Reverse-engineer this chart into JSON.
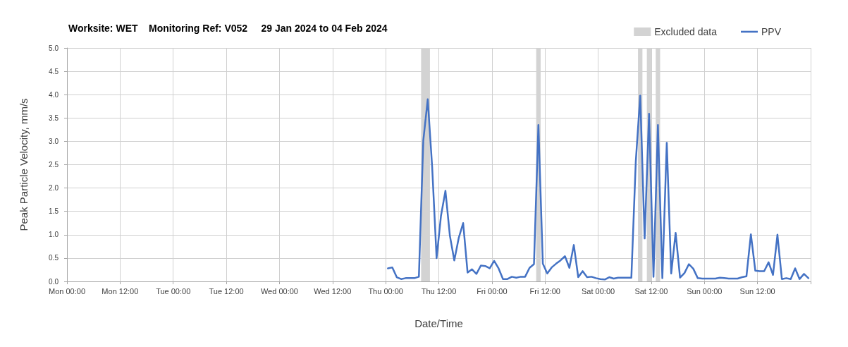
{
  "chart_data": {
    "type": "line",
    "title": "Worksite: WET    Monitoring Ref: V052     29 Jan 2024 to 04 Feb 2024",
    "xlabel": "Date/Time",
    "ylabel": "Peak Particle Velocity, mm/s",
    "x": [
      "2024-02-01T00:30",
      "2024-02-01T01:30",
      "2024-02-01T02:30",
      "2024-02-01T03:30",
      "2024-02-01T04:30",
      "2024-02-01T05:30",
      "2024-02-01T06:30",
      "2024-02-01T07:30",
      "2024-02-01T08:30",
      "2024-02-01T09:30",
      "2024-02-01T10:30",
      "2024-02-01T11:30",
      "2024-02-01T12:30",
      "2024-02-01T13:30",
      "2024-02-01T14:30",
      "2024-02-01T15:30",
      "2024-02-01T16:30",
      "2024-02-01T17:30",
      "2024-02-01T18:30",
      "2024-02-01T19:30",
      "2024-02-01T20:30",
      "2024-02-01T21:30",
      "2024-02-01T22:30",
      "2024-02-01T23:30",
      "2024-02-02T00:30",
      "2024-02-02T01:30",
      "2024-02-02T02:30",
      "2024-02-02T03:30",
      "2024-02-02T04:30",
      "2024-02-02T05:30",
      "2024-02-02T06:30",
      "2024-02-02T07:30",
      "2024-02-02T08:30",
      "2024-02-02T09:30",
      "2024-02-02T10:30",
      "2024-02-02T11:30",
      "2024-02-02T12:30",
      "2024-02-02T13:30",
      "2024-02-02T14:30",
      "2024-02-02T15:30",
      "2024-02-02T16:30",
      "2024-02-02T17:30",
      "2024-02-02T18:30",
      "2024-02-02T19:30",
      "2024-02-02T20:30",
      "2024-02-02T21:30",
      "2024-02-02T22:30",
      "2024-02-02T23:30",
      "2024-02-03T00:30",
      "2024-02-03T01:30",
      "2024-02-03T02:30",
      "2024-02-03T03:30",
      "2024-02-03T04:30",
      "2024-02-03T05:30",
      "2024-02-03T06:30",
      "2024-02-03T07:30",
      "2024-02-03T08:30",
      "2024-02-03T09:30",
      "2024-02-03T10:30",
      "2024-02-03T11:30",
      "2024-02-03T12:30",
      "2024-02-03T13:30",
      "2024-02-03T14:30",
      "2024-02-03T15:30",
      "2024-02-03T16:30",
      "2024-02-03T17:30",
      "2024-02-03T18:30",
      "2024-02-03T19:30",
      "2024-02-03T20:30",
      "2024-02-03T21:30",
      "2024-02-03T22:30",
      "2024-02-03T23:30",
      "2024-02-04T00:30",
      "2024-02-04T01:30",
      "2024-02-04T02:30",
      "2024-02-04T03:30",
      "2024-02-04T04:30",
      "2024-02-04T05:30",
      "2024-02-04T06:30",
      "2024-02-04T07:30",
      "2024-02-04T08:30",
      "2024-02-04T09:30",
      "2024-02-04T10:30",
      "2024-02-04T11:30",
      "2024-02-04T12:30",
      "2024-02-04T13:30",
      "2024-02-04T14:30",
      "2024-02-04T15:30",
      "2024-02-04T16:30",
      "2024-02-04T17:30",
      "2024-02-04T18:30",
      "2024-02-04T19:30",
      "2024-02-04T20:30",
      "2024-02-04T21:30",
      "2024-02-04T22:30",
      "2024-02-04T23:30"
    ],
    "series": [
      {
        "name": "PPV",
        "color": "#4472c4",
        "values": [
          0.28,
          0.3,
          0.09,
          0.05,
          0.07,
          0.07,
          0.07,
          0.1,
          3.02,
          3.9,
          2.45,
          0.5,
          1.41,
          1.94,
          0.98,
          0.45,
          0.93,
          1.25,
          0.19,
          0.26,
          0.16,
          0.34,
          0.33,
          0.28,
          0.44,
          0.28,
          0.05,
          0.05,
          0.1,
          0.08,
          0.1,
          0.1,
          0.29,
          0.37,
          3.35,
          0.38,
          0.17,
          0.3,
          0.38,
          0.45,
          0.54,
          0.29,
          0.78,
          0.09,
          0.22,
          0.09,
          0.1,
          0.07,
          0.05,
          0.04,
          0.09,
          0.06,
          0.08,
          0.08,
          0.08,
          0.08,
          2.57,
          3.98,
          0.92,
          3.59,
          0.1,
          3.35,
          0.07,
          2.97,
          0.17,
          1.04,
          0.08,
          0.18,
          0.37,
          0.27,
          0.07,
          0.06,
          0.06,
          0.06,
          0.06,
          0.08,
          0.07,
          0.06,
          0.06,
          0.06,
          0.09,
          0.11,
          1.01,
          0.23,
          0.22,
          0.22,
          0.41,
          0.14,
          1.0,
          0.05,
          0.07,
          0.05,
          0.28,
          0.05,
          0.16,
          0.07
        ]
      }
    ],
    "bands": [
      {
        "axis": "x",
        "from": "2024-02-01T08:00",
        "to": "2024-02-01T10:00",
        "label": "Excluded data",
        "color": "#d3d3d3"
      },
      {
        "axis": "x",
        "from": "2024-02-02T10:00",
        "to": "2024-02-02T11:00",
        "color": "#d3d3d3"
      },
      {
        "axis": "x",
        "from": "2024-02-03T09:00",
        "to": "2024-02-03T10:00",
        "color": "#d3d3d3"
      },
      {
        "axis": "x",
        "from": "2024-02-03T11:00",
        "to": "2024-02-03T12:00",
        "color": "#d3d3d3"
      },
      {
        "axis": "x",
        "from": "2024-02-03T13:00",
        "to": "2024-02-03T14:00",
        "color": "#d3d3d3"
      }
    ],
    "xlim": [
      "2024-01-29T00:00",
      "2024-02-05T00:00"
    ],
    "xticks": [
      {
        "value": "2024-01-29T00:00",
        "label": "Mon 00:00"
      },
      {
        "value": "2024-01-29T12:00",
        "label": "Mon 12:00"
      },
      {
        "value": "2024-01-30T00:00",
        "label": "Tue 00:00"
      },
      {
        "value": "2024-01-30T12:00",
        "label": "Tue 12:00"
      },
      {
        "value": "2024-01-31T00:00",
        "label": "Wed 00:00"
      },
      {
        "value": "2024-01-31T12:00",
        "label": "Wed 12:00"
      },
      {
        "value": "2024-02-01T00:00",
        "label": "Thu 00:00"
      },
      {
        "value": "2024-02-01T12:00",
        "label": "Thu 12:00"
      },
      {
        "value": "2024-02-02T00:00",
        "label": "Fri 00:00"
      },
      {
        "value": "2024-02-02T12:00",
        "label": "Fri 12:00"
      },
      {
        "value": "2024-02-03T00:00",
        "label": "Sat 00:00"
      },
      {
        "value": "2024-02-03T12:00",
        "label": "Sat 12:00"
      },
      {
        "value": "2024-02-04T00:00",
        "label": "Sun 00:00"
      },
      {
        "value": "2024-02-04T12:00",
        "label": "Sun 12:00"
      },
      {
        "value": "2024-02-05T00:00",
        "label": null
      }
    ],
    "ylim": [
      0,
      5
    ],
    "yticks": [
      {
        "value": 0,
        "label": "0.0"
      },
      0.5,
      {
        "value": 1,
        "label": "1.0"
      },
      1.5,
      {
        "value": 2,
        "label": "2.0"
      },
      2.5,
      {
        "value": 3,
        "label": "3.0"
      },
      3.5,
      {
        "value": 4,
        "label": "4.0"
      },
      4.5,
      {
        "value": 5,
        "label": "5.0"
      }
    ],
    "grid": true,
    "legend": "top right"
  }
}
